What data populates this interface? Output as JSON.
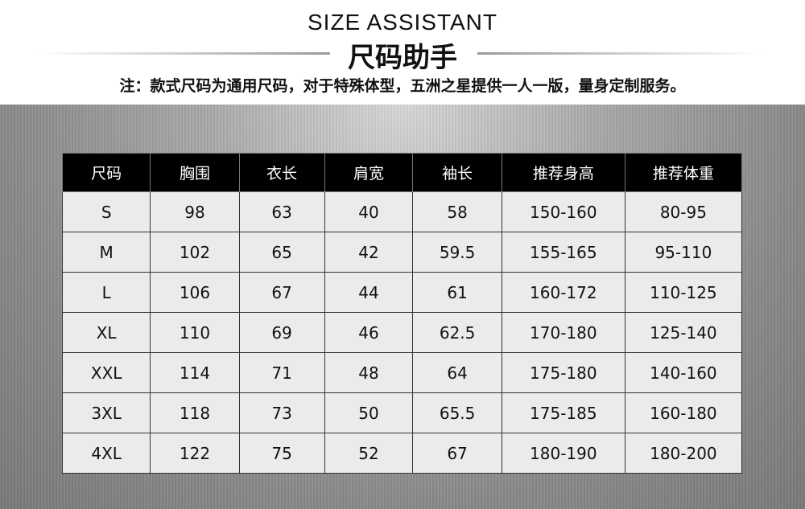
{
  "header": {
    "title_en": "SIZE ASSISTANT",
    "title_cn": "尺码助手",
    "note": "注：款式尺码为通用尺码，对于特殊体型，五洲之星提供一人一版，量身定制服务。"
  },
  "table": {
    "columns": [
      "尺码",
      "胸围",
      "衣长",
      "肩宽",
      "袖长",
      "推荐身高",
      "推荐体重"
    ],
    "rows": [
      [
        "S",
        "98",
        "63",
        "40",
        "58",
        "150-160",
        "80-95"
      ],
      [
        "M",
        "102",
        "65",
        "42",
        "59.5",
        "155-165",
        "95-110"
      ],
      [
        "L",
        "106",
        "67",
        "44",
        "61",
        "160-172",
        "110-125"
      ],
      [
        "XL",
        "110",
        "69",
        "46",
        "62.5",
        "170-180",
        "125-140"
      ],
      [
        "XXL",
        "114",
        "71",
        "48",
        "64",
        "175-180",
        "140-160"
      ],
      [
        "3XL",
        "118",
        "73",
        "50",
        "65.5",
        "175-185",
        "160-180"
      ],
      [
        "4XL",
        "122",
        "75",
        "52",
        "67",
        "180-190",
        "180-200"
      ]
    ]
  }
}
